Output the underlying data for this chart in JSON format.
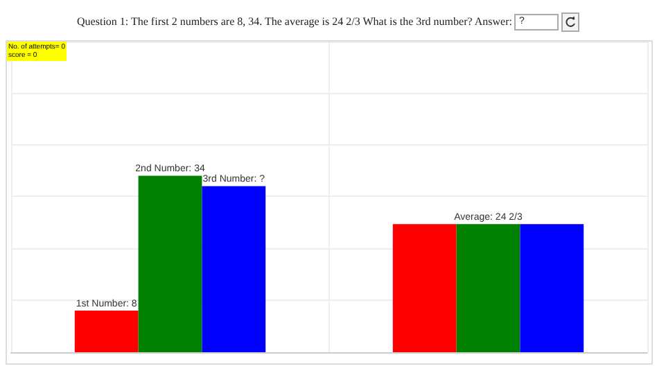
{
  "chart_data": {
    "type": "bar",
    "title": "Question 1: The first 2 numbers are 8, 34. The average is 24 2/3 What is the 3rd number?  Answer:",
    "annotations": [
      "?",
      "No. of attempts= 0",
      "score = 0",
      "3rd Number: ?"
    ],
    "categories": [
      null,
      null
    ],
    "series": [
      {
        "color": "#ff0000",
        "values": [
          8,
          24.667
        ],
        "value_labels": [
          "1st Number: 8",
          null
        ]
      },
      {
        "color": "#008000",
        "values": [
          34,
          24.667
        ],
        "value_labels": [
          "2nd Number: 34",
          "Average: 24 2/3"
        ]
      },
      {
        "color": "#0000ff",
        "values": [
          32,
          24.667
        ],
        "value_labels": [
          null,
          null
        ]
      }
    ],
    "grid": true
  }
}
